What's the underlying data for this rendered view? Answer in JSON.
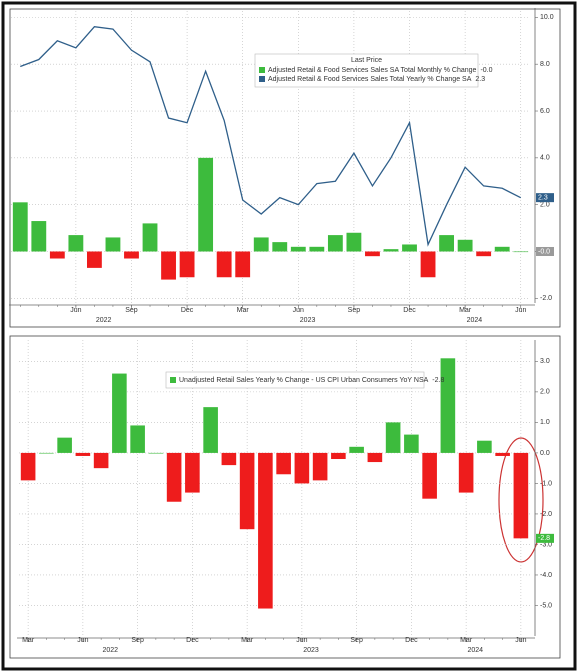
{
  "chart_data": [
    {
      "type": "combo",
      "x": [
        "2022-03",
        "2022-04",
        "2022-05",
        "2022-06",
        "2022-07",
        "2022-08",
        "2022-09",
        "2022-10",
        "2022-11",
        "2022-12",
        "2023-01",
        "2023-02",
        "2023-03",
        "2023-04",
        "2023-05",
        "2023-06",
        "2023-07",
        "2023-08",
        "2023-09",
        "2023-10",
        "2023-11",
        "2023-12",
        "2024-01",
        "2024-02",
        "2024-03",
        "2024-04",
        "2024-05",
        "2024-06"
      ],
      "xticks": [
        {
          "value": "2022-06",
          "label": "Jun"
        },
        {
          "value": "2022-09",
          "label": "Sep"
        },
        {
          "value": "2022-12",
          "label": "Dec"
        },
        {
          "value": "2023-03",
          "label": "Mar"
        },
        {
          "value": "2023-06",
          "label": "Jun"
        },
        {
          "value": "2023-09",
          "label": "Sep"
        },
        {
          "value": "2023-12",
          "label": "Dec"
        },
        {
          "value": "2024-03",
          "label": "Mar"
        },
        {
          "value": "2024-06",
          "label": "Jun"
        }
      ],
      "years": [
        "2022",
        "2023",
        "2024"
      ],
      "legend_title": "Last Price",
      "series": [
        {
          "name": "Adjusted Retail & Food Services Sales SA Total Monthly % Change",
          "last_label": "-0.0",
          "kind": "bar",
          "positive_color": "#3dbb3d",
          "negative_color": "#ee1c1c",
          "tag_color": "#9a9a9a",
          "values": [
            2.1,
            1.3,
            -0.3,
            0.7,
            -0.7,
            0.6,
            -0.3,
            1.2,
            -1.2,
            -1.1,
            4.0,
            -1.1,
            -1.1,
            0.6,
            0.4,
            0.2,
            0.2,
            0.7,
            0.8,
            -0.2,
            0.1,
            0.3,
            -1.1,
            0.7,
            0.5,
            -0.2,
            0.2,
            0.0
          ]
        },
        {
          "name": "Adjusted Retail & Food Services Sales Total Yearly % Change SA",
          "last_label": "2.3",
          "kind": "line",
          "color": "#2f5f8a",
          "tag_color": "#2f5f8a",
          "values": [
            7.9,
            8.2,
            9.0,
            8.7,
            9.6,
            9.5,
            8.6,
            8.1,
            5.7,
            5.5,
            7.7,
            5.6,
            2.2,
            1.6,
            2.3,
            2.0,
            2.9,
            3.0,
            4.2,
            2.8,
            4.0,
            5.5,
            0.3,
            2.0,
            3.6,
            2.8,
            2.7,
            2.3
          ]
        }
      ],
      "ylim": [
        -2.2,
        10.4
      ],
      "yticks": [
        {
          "value": -2,
          "label": "-2.0"
        },
        {
          "value": 0,
          "label": "0.0"
        },
        {
          "value": 2,
          "label": "2.0"
        },
        {
          "value": 4,
          "label": "4.0"
        },
        {
          "value": 6,
          "label": "6.0"
        },
        {
          "value": 8,
          "label": "8.0"
        },
        {
          "value": 10,
          "label": "10.0"
        }
      ],
      "grid": true
    },
    {
      "type": "bar",
      "x": [
        "2022-03",
        "2022-04",
        "2022-05",
        "2022-06",
        "2022-07",
        "2022-08",
        "2022-09",
        "2022-10",
        "2022-11",
        "2022-12",
        "2023-01",
        "2023-02",
        "2023-03",
        "2023-04",
        "2023-05",
        "2023-06",
        "2023-07",
        "2023-08",
        "2023-09",
        "2023-10",
        "2023-11",
        "2023-12",
        "2024-01",
        "2024-02",
        "2024-03",
        "2024-04",
        "2024-05",
        "2024-06"
      ],
      "xticks": [
        {
          "value": "2022-03",
          "label": "Mar"
        },
        {
          "value": "2022-06",
          "label": "Jun"
        },
        {
          "value": "2022-09",
          "label": "Sep"
        },
        {
          "value": "2022-12",
          "label": "Dec"
        },
        {
          "value": "2023-03",
          "label": "Mar"
        },
        {
          "value": "2023-06",
          "label": "Jun"
        },
        {
          "value": "2023-09",
          "label": "Sep"
        },
        {
          "value": "2023-12",
          "label": "Dec"
        },
        {
          "value": "2024-03",
          "label": "Mar"
        },
        {
          "value": "2024-06",
          "label": "Jun"
        }
      ],
      "years": [
        "2022",
        "2023",
        "2024"
      ],
      "series": [
        {
          "name": "Unadjusted Retail Sales Yearly % Change - US CPI Urban Consumers YoY NSA",
          "last_label": "-2.8",
          "kind": "bar",
          "positive_color": "#3dbb3d",
          "negative_color": "#ee1c1c",
          "tag_color": "#3dbb3d",
          "values": [
            -0.9,
            0.0,
            0.5,
            -0.1,
            -0.5,
            2.6,
            0.9,
            0.0,
            -1.6,
            -1.3,
            1.5,
            -0.4,
            -2.5,
            -5.1,
            -0.7,
            -1.0,
            -0.9,
            -0.2,
            0.2,
            -0.3,
            1.0,
            0.6,
            -1.5,
            3.1,
            -1.3,
            0.4,
            -0.1,
            -2.8
          ]
        }
      ],
      "ylim": [
        -6.0,
        3.7
      ],
      "yticks": [
        {
          "value": -5,
          "label": "-5.0"
        },
        {
          "value": -4,
          "label": "-4.0"
        },
        {
          "value": -3,
          "label": "-3.0"
        },
        {
          "value": -2,
          "label": "-2.0"
        },
        {
          "value": -1,
          "label": "-1.0"
        },
        {
          "value": 0,
          "label": "0.0"
        },
        {
          "value": 1,
          "label": "1.0"
        },
        {
          "value": 2,
          "label": "2.0"
        },
        {
          "value": 3,
          "label": "3.0"
        }
      ],
      "grid": true
    }
  ]
}
